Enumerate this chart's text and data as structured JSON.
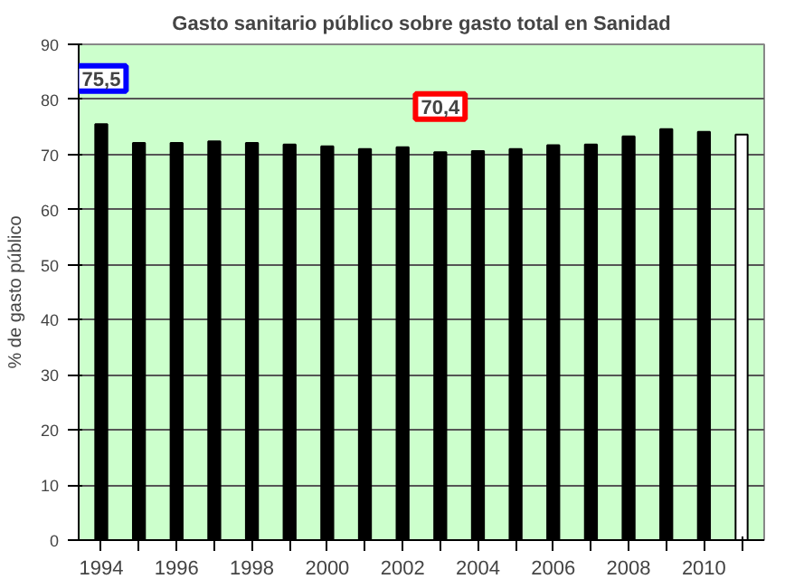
{
  "chart_data": {
    "type": "bar",
    "title": "Gasto sanitario público sobre gasto total en Sanidad",
    "ylabel": "% de gasto público",
    "categories": [
      "1994",
      null,
      "1996",
      null,
      "1998",
      null,
      "2000",
      null,
      "2002",
      null,
      "2004",
      null,
      "2006",
      null,
      "2008",
      null,
      "2010",
      null
    ],
    "values": [
      75.5,
      72.1,
      72.1,
      72.4,
      72.1,
      71.8,
      71.5,
      71.0,
      71.3,
      70.4,
      70.6,
      71.0,
      71.7,
      71.8,
      73.3,
      74.6,
      74.1,
      73.6
    ],
    "colors": [
      "#000000",
      "#000000",
      "#000000",
      "#000000",
      "#000000",
      "#000000",
      "#000000",
      "#000000",
      "#000000",
      "#000000",
      "#000000",
      "#000000",
      "#000000",
      "#000000",
      "#000000",
      "#000000",
      "#000000",
      "#ffffff"
    ],
    "ylim": [
      0,
      90
    ],
    "yticks": [
      0,
      10,
      20,
      30,
      40,
      50,
      60,
      70,
      80,
      90
    ],
    "grid": "y",
    "annotations": [
      {
        "text": "75,5",
        "x": "1994",
        "y": 75.5
      },
      {
        "text": "70,4",
        "y": 70.4
      }
    ]
  }
}
